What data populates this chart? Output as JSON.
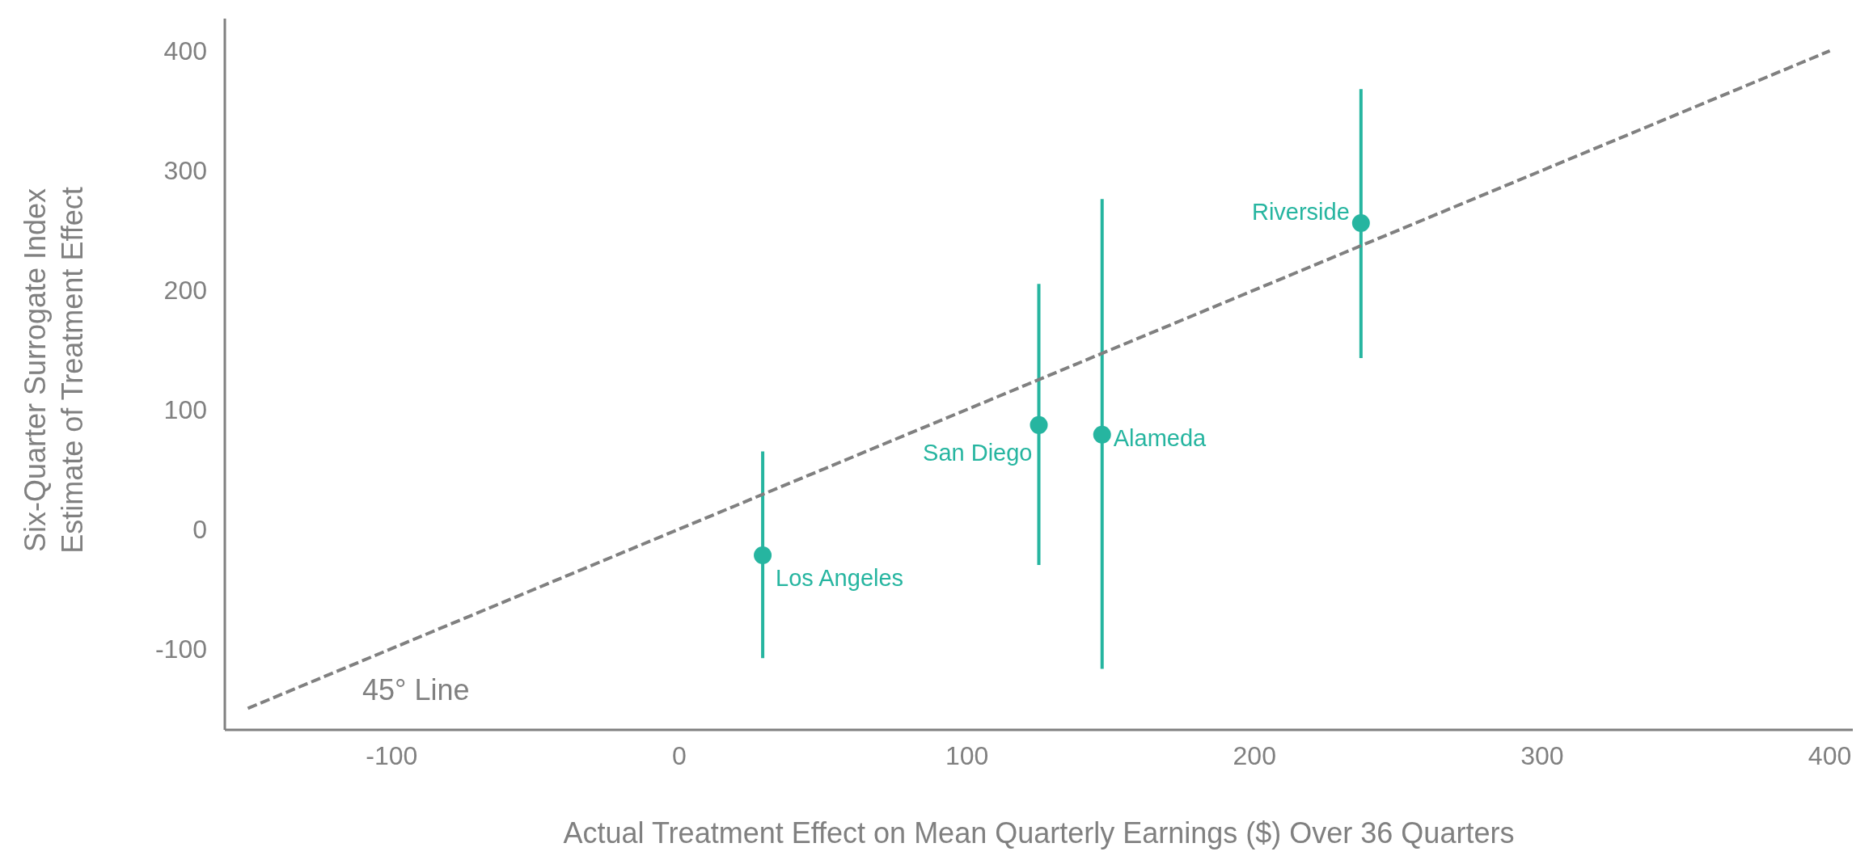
{
  "chart_data": {
    "type": "scatter",
    "xlabel": "Actual Treatment Effect on Mean Quarterly Earnings ($) Over 36 Quarters",
    "ylabel": "Six-Quarter Surrogate Index\nEstimate of Treatment Effect",
    "series": [
      {
        "color": "#26b5a0",
        "marker": "circle",
        "x": [
          29,
          125,
          147,
          237
        ],
        "values": [
          -22,
          87,
          79,
          256
        ],
        "errors": [
          [
            -108,
            65
          ],
          [
            -30,
            205
          ],
          [
            -117,
            276
          ],
          [
            143,
            368
          ]
        ]
      },
      {
        "type": "line",
        "color": "#808080",
        "line_style": "dashed",
        "x": [
          -150,
          400
        ],
        "values": [
          -150,
          400
        ]
      }
    ],
    "annotations": [
      {
        "text": "Los Angeles",
        "x": 29,
        "y": -22
      },
      {
        "text": "San Diego",
        "x": 125,
        "y": 87
      },
      {
        "text": "Alameda",
        "x": 147,
        "y": 79
      },
      {
        "text": "Riverside",
        "x": 237,
        "y": 256
      },
      "45° Line"
    ],
    "xlim": [
      -158,
      408
    ],
    "xticks": [
      -100,
      0,
      100,
      200,
      300,
      400
    ],
    "ylim": [
      -168,
      427
    ],
    "yticks": [
      -100,
      0,
      100,
      200,
      300,
      400
    ],
    "grid": false
  }
}
